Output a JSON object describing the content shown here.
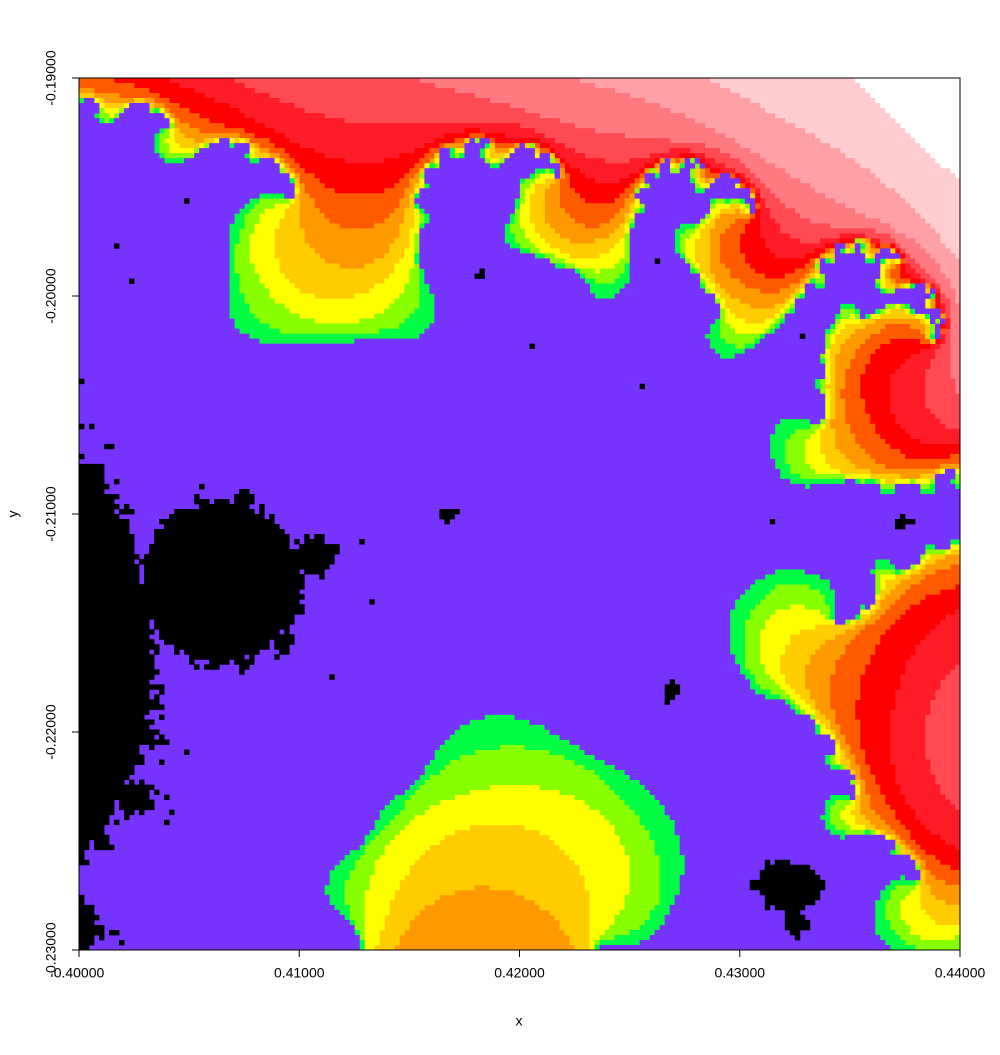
{
  "chart_data": {
    "type": "image",
    "x_label": "x",
    "y_label": "y",
    "xlim": [
      0.4,
      0.44
    ],
    "ylim": [
      -0.23,
      -0.19
    ],
    "xticks": [
      {
        "value": 0.4,
        "label": "0.40000"
      },
      {
        "value": 0.41,
        "label": "0.41000"
      },
      {
        "value": 0.42,
        "label": "0.42000"
      },
      {
        "value": 0.43,
        "label": "0.43000"
      },
      {
        "value": 0.44,
        "label": "0.44000"
      }
    ],
    "yticks": [
      {
        "value": -0.19,
        "label": "-0.19000"
      },
      {
        "value": -0.2,
        "label": "-0.20000"
      },
      {
        "value": -0.21,
        "label": "-0.21000"
      },
      {
        "value": -0.22,
        "label": "-0.22000"
      },
      {
        "value": -0.23,
        "label": "-0.23000"
      }
    ],
    "colors": [
      "#ffffff",
      "#ffcccf",
      "#ffa0a5",
      "#ff7a80",
      "#ff4a53",
      "#ff1c28",
      "#ff0000",
      "#ff5a00",
      "#ff9900",
      "#ffcc00",
      "#ffff00",
      "#88ff00",
      "#00ff44",
      "#7733ff",
      "#000000"
    ]
  }
}
